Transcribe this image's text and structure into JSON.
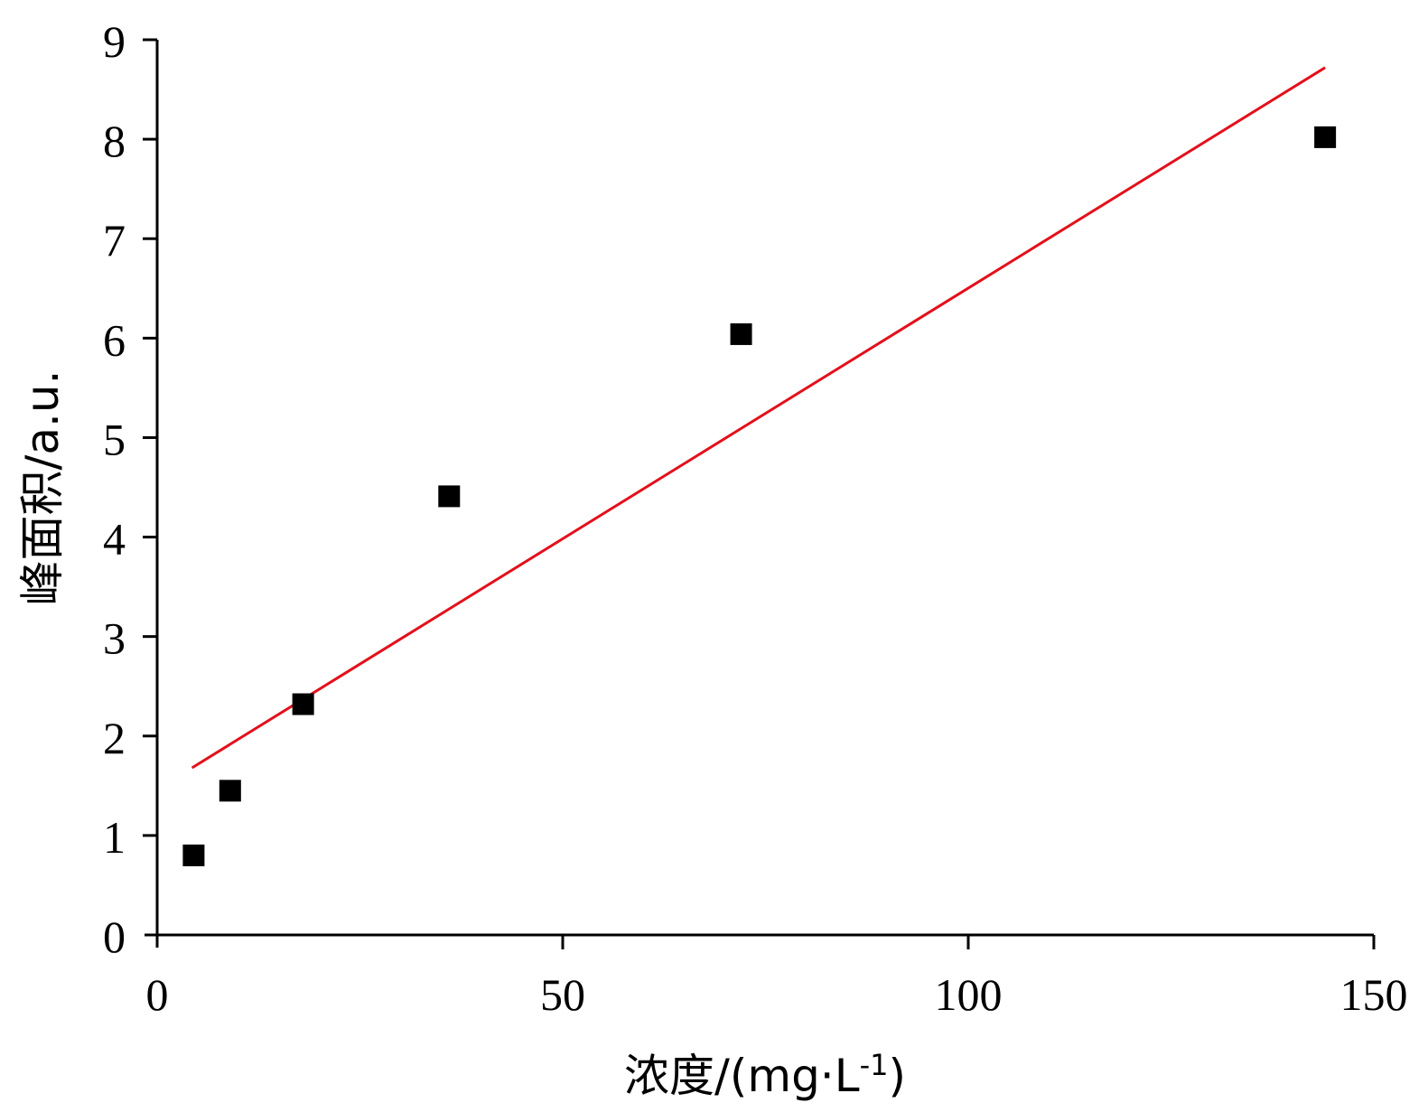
{
  "chart_data": {
    "type": "scatter",
    "title": "",
    "xlabel": "浓度/(mg·L",
    "xlabel_sup": "-1",
    "xlabel_close": ")",
    "ylabel": "峰面积/a.u.",
    "xlim": [
      0,
      150
    ],
    "ylim": [
      0,
      9
    ],
    "x_ticks": [
      0,
      50,
      100,
      150
    ],
    "y_ticks": [
      0,
      1,
      2,
      3,
      4,
      5,
      6,
      7,
      8,
      9
    ],
    "grid": false,
    "legend": "none",
    "series": [
      {
        "type": "scatter",
        "marker": "square",
        "color": "#000000",
        "points": [
          {
            "x": 4.5,
            "y": 0.8
          },
          {
            "x": 9.0,
            "y": 1.45
          },
          {
            "x": 18.0,
            "y": 2.32
          },
          {
            "x": 36.0,
            "y": 4.41
          },
          {
            "x": 72.0,
            "y": 6.04
          },
          {
            "x": 144.0,
            "y": 8.02
          }
        ]
      },
      {
        "type": "line",
        "role": "linear-fit",
        "color": "#e3101b",
        "points": [
          {
            "x": 4.3,
            "y": 1.68
          },
          {
            "x": 144.0,
            "y": 8.72
          }
        ]
      }
    ]
  }
}
